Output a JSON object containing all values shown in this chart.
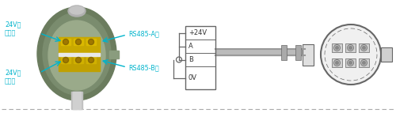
{
  "bg_color": "#ffffff",
  "line_color": "#999999",
  "dark_line": "#666666",
  "cyan_color": "#00b4cc",
  "device_outer_color": "#7a8c6e",
  "device_inner_color": "#8a9c7e",
  "device_face_color": "#b0b8a8",
  "terminal_gold": "#c8a800",
  "terminal_dark": "#a08000",
  "terminal_screw": "#8b6c00",
  "dashed_color": "#aaaaaa",
  "box_line": "#888888",
  "fig_width": 5.0,
  "fig_height": 1.43,
  "dpi": 100,
  "label_24v_pos": "24V电\n源正极",
  "label_24v_neg": "24V电\n源负极",
  "label_rs485_a": "RS485-A极",
  "label_rs485_b": "RS485-B极"
}
